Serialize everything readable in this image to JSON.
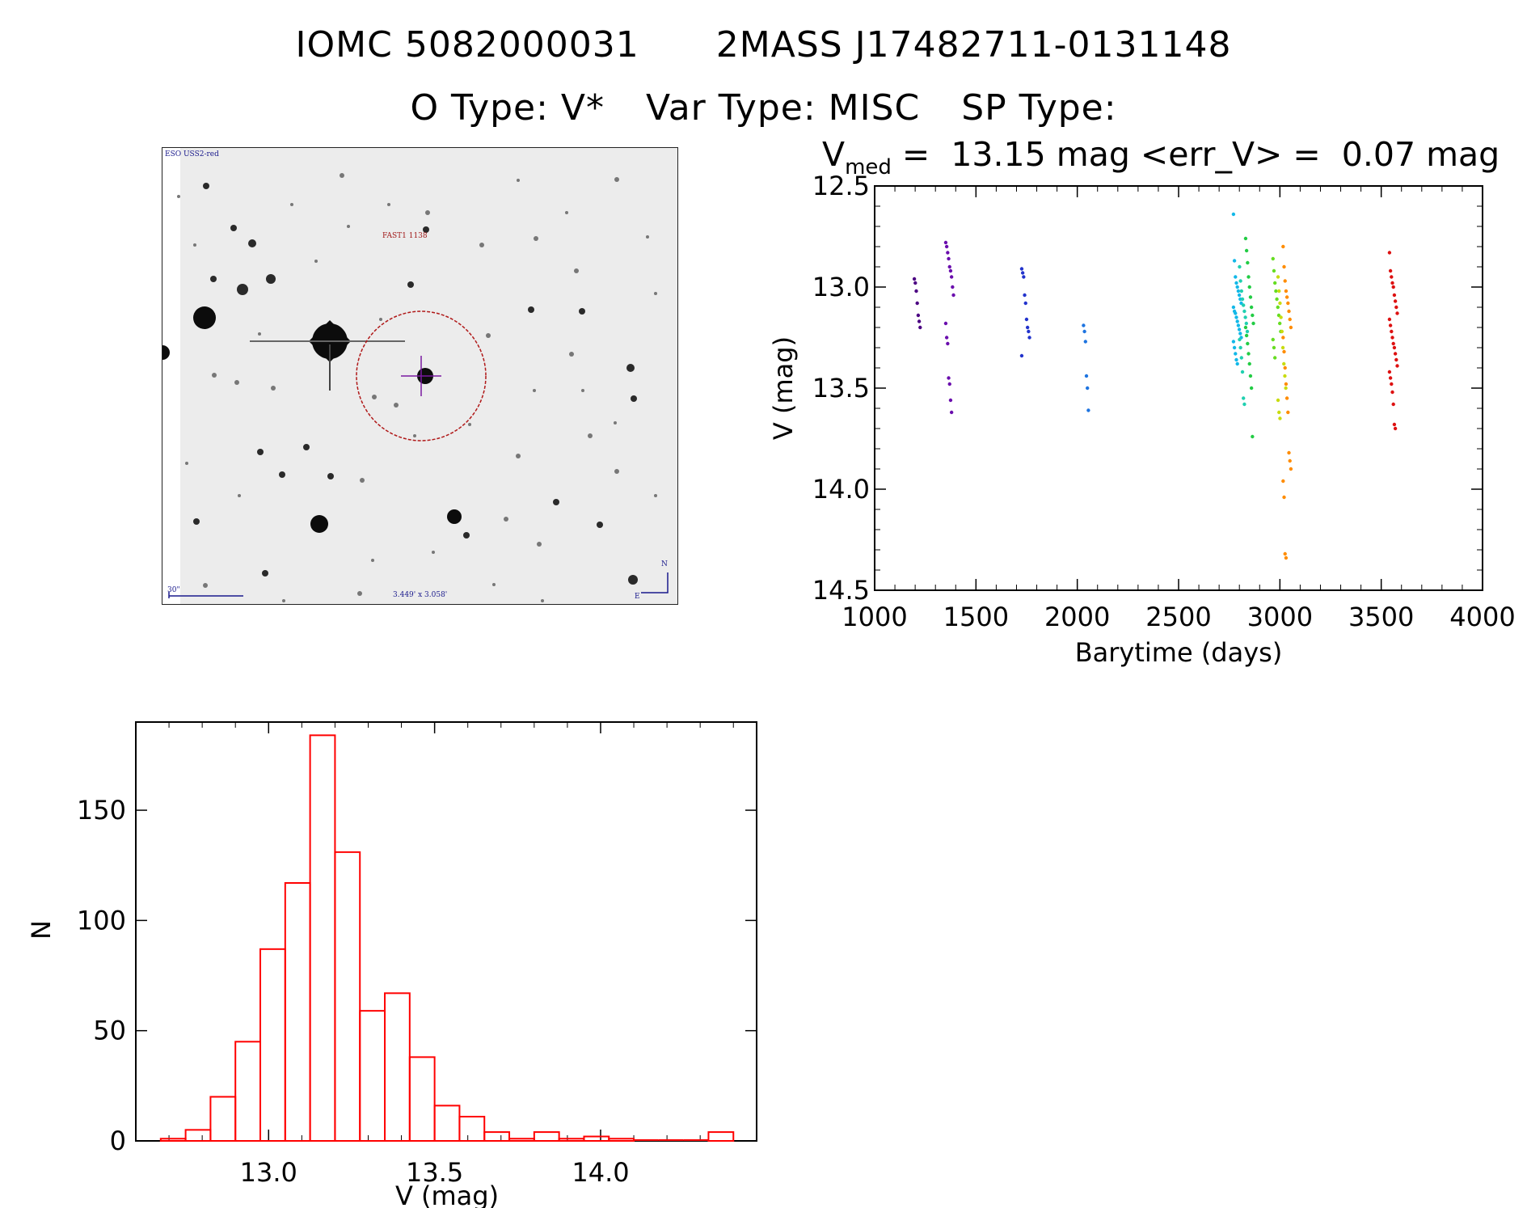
{
  "header": {
    "id_iomc": "IOMC 5082000031",
    "id_2mass": "2MASS J17482711-0131148",
    "o_type": "O Type: V*",
    "var_type": "Var Type: MISC",
    "sp_type": "SP Type:"
  },
  "sky_image": {
    "survey_label": "ESO USS2-red",
    "target_label": "FAST1 1138",
    "scale_label": "30\"",
    "fov_label": "3.449' x 3.058'",
    "north_label": "N",
    "east_label": "E",
    "aperture_color": "#b01818",
    "cross_color": "#7a1aa0"
  },
  "chart_data": [
    {
      "type": "scatter",
      "title_prefix": "V",
      "title_subscript": "med",
      "title_suffix": " =  13.15 mag <err_V> =  0.07 mag",
      "xlabel": "Barytime (days)",
      "ylabel": "V (mag)",
      "xlim": [
        1000,
        4000
      ],
      "ylim": [
        14.5,
        12.5
      ],
      "y_inverted": true,
      "xticks": [
        "1000",
        "1500",
        "2000",
        "2500",
        "3000",
        "3500",
        "4000"
      ],
      "yticks": [
        "12.5",
        "13.0",
        "13.5",
        "14.0",
        "14.5"
      ],
      "color_scale": "rainbow by time",
      "groups": [
        {
          "x": 1215,
          "color": "#4b0082",
          "y": [
            12.96,
            12.98,
            13.02,
            13.08,
            13.14,
            13.17,
            13.2
          ]
        },
        {
          "x": 1370,
          "color": "#6a0dad",
          "y": [
            12.78,
            12.8,
            12.83,
            12.86,
            12.9,
            12.92,
            12.95,
            13.0,
            13.04,
            13.18,
            13.25,
            13.28,
            13.45,
            13.48,
            13.56,
            13.62
          ]
        },
        {
          "x": 1745,
          "color": "#2233cc",
          "y": [
            12.91,
            12.93,
            12.95,
            13.04,
            13.08,
            13.16,
            13.2,
            13.22,
            13.25,
            13.34
          ]
        },
        {
          "x": 2050,
          "color": "#1e74e0",
          "y": [
            13.19,
            13.22,
            13.27,
            13.44,
            13.5,
            13.61
          ]
        },
        {
          "x": 2790,
          "color": "#12b8e8",
          "y": [
            12.64,
            12.87,
            12.95,
            12.98,
            13.0,
            13.02,
            13.04,
            13.06,
            13.08,
            13.1,
            13.12,
            13.13,
            13.15,
            13.17,
            13.19,
            13.21,
            13.23,
            13.25,
            13.27,
            13.3,
            13.33,
            13.36,
            13.38
          ]
        },
        {
          "x": 2820,
          "color": "#20d0b0",
          "y": [
            12.9,
            12.97,
            13.02,
            13.06,
            13.09,
            13.12,
            13.15,
            13.18,
            13.22,
            13.26,
            13.3,
            13.35,
            13.42,
            13.55,
            13.58
          ]
        },
        {
          "x": 2850,
          "color": "#22cc44",
          "y": [
            12.76,
            12.82,
            12.88,
            12.95,
            13.0,
            13.05,
            13.1,
            13.14,
            13.18,
            13.2,
            13.24,
            13.28,
            13.33,
            13.38,
            13.44,
            13.5,
            13.74
          ]
        },
        {
          "x": 2985,
          "color": "#66dd22",
          "y": [
            12.86,
            12.92,
            12.98,
            13.02,
            13.06,
            13.1,
            13.14,
            13.18,
            13.22,
            13.26,
            13.3,
            13.35
          ]
        },
        {
          "x": 3010,
          "color": "#c8dc10",
          "y": [
            12.95,
            13.02,
            13.08,
            13.15,
            13.22,
            13.3,
            13.38,
            13.44,
            13.5,
            13.56,
            13.62,
            13.65
          ]
        },
        {
          "x": 3035,
          "color": "#ff8c00",
          "y": [
            12.8,
            12.9,
            12.97,
            13.02,
            13.05,
            13.08,
            13.12,
            13.16,
            13.2,
            13.25,
            13.32,
            13.4,
            13.48,
            13.55,
            13.62,
            13.82,
            13.86,
            13.9,
            13.96,
            14.04,
            14.32,
            14.34
          ]
        },
        {
          "x": 3560,
          "color": "#dd1111",
          "y": [
            12.83,
            12.92,
            12.95,
            12.98,
            13.0,
            13.04,
            13.07,
            13.1,
            13.13,
            13.16,
            13.19,
            13.22,
            13.25,
            13.28,
            13.3,
            13.33,
            13.36,
            13.39,
            13.42,
            13.45,
            13.48,
            13.52,
            13.58,
            13.68,
            13.7
          ]
        }
      ]
    },
    {
      "type": "bar",
      "subtype": "histogram",
      "xlabel": "V (mag)",
      "ylabel": "N",
      "xlim": [
        12.6,
        14.47
      ],
      "ylim": [
        0,
        190
      ],
      "xticks": [
        "13.0",
        "13.5",
        "14.0"
      ],
      "yticks": [
        "0",
        "50",
        "100",
        "150"
      ],
      "bin_width": 0.075,
      "bar_color": "#ff0000",
      "bins": [
        {
          "x0": 12.675,
          "n": 1
        },
        {
          "x0": 12.75,
          "n": 5
        },
        {
          "x0": 12.825,
          "n": 20
        },
        {
          "x0": 12.9,
          "n": 45
        },
        {
          "x0": 12.975,
          "n": 87
        },
        {
          "x0": 13.05,
          "n": 117
        },
        {
          "x0": 13.125,
          "n": 184
        },
        {
          "x0": 13.2,
          "n": 131
        },
        {
          "x0": 13.275,
          "n": 59
        },
        {
          "x0": 13.35,
          "n": 67
        },
        {
          "x0": 13.425,
          "n": 38
        },
        {
          "x0": 13.5,
          "n": 16
        },
        {
          "x0": 13.575,
          "n": 11
        },
        {
          "x0": 13.65,
          "n": 4
        },
        {
          "x0": 13.725,
          "n": 1
        },
        {
          "x0": 13.8,
          "n": 4
        },
        {
          "x0": 13.875,
          "n": 1
        },
        {
          "x0": 13.95,
          "n": 2
        },
        {
          "x0": 14.025,
          "n": 1
        },
        {
          "x0": 14.1,
          "n": 0
        },
        {
          "x0": 14.175,
          "n": 0
        },
        {
          "x0": 14.25,
          "n": 0
        },
        {
          "x0": 14.325,
          "n": 4
        }
      ]
    }
  ]
}
